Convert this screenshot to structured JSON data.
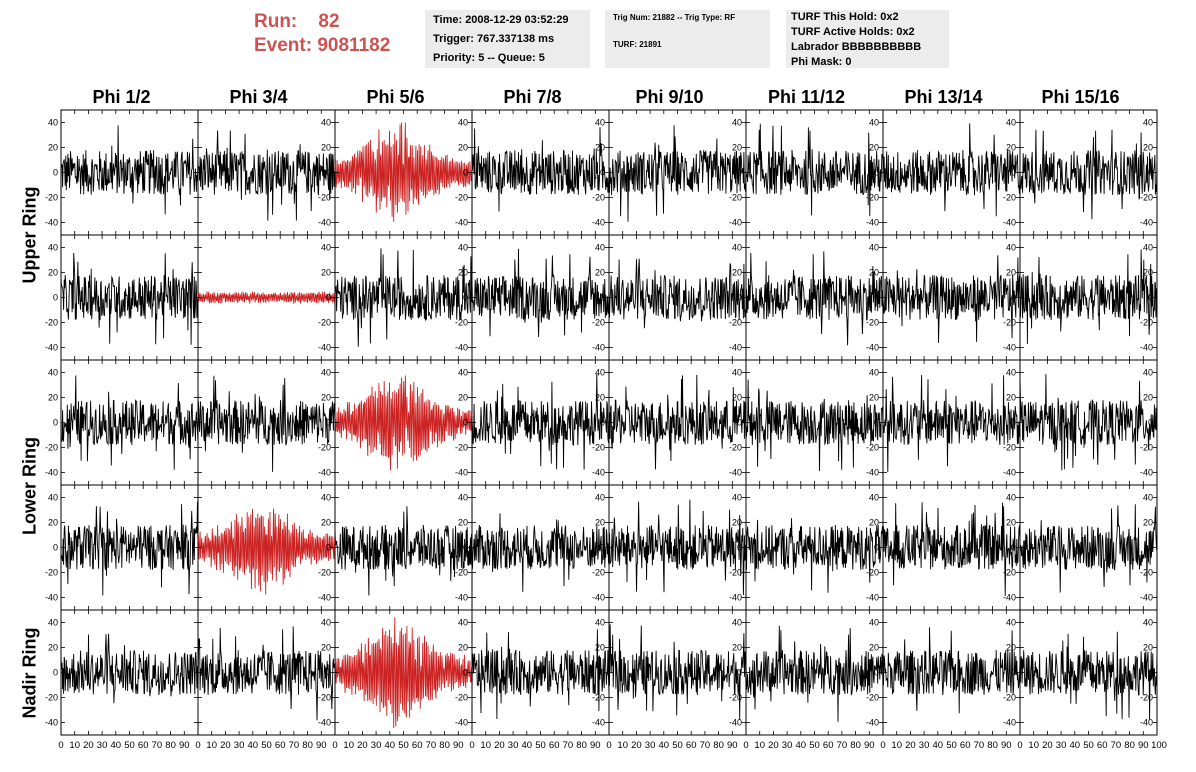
{
  "run_label": "Run:",
  "run_value": "82",
  "event_label": "Event:",
  "event_value": "9081182",
  "info_box_1": [
    "Time: 2008-12-29 03:52:29",
    "Trigger: 767.337138 ms",
    "Priority: 5 -- Queue: 5"
  ],
  "info_box_2": [
    "Trig Num: 21882 -- Trig Type: RF",
    "TURF: 21891"
  ],
  "info_box_3": [
    "TURF This Hold: 0x2",
    "TURF Active Holds: 0x2",
    "Labrador BBBBBBBBBB",
    "Phi Mask: 0"
  ],
  "colors": {
    "highlight_text": "#cd5353",
    "trace_normal": "#000000",
    "trace_highlight": "#cc2222",
    "info_box_bg": "#ececec"
  },
  "chart_data": {
    "type": "line",
    "columns": [
      "Phi 1/2",
      "Phi 3/4",
      "Phi 5/6",
      "Phi 7/8",
      "Phi 9/10",
      "Phi 11/12",
      "Phi 13/14",
      "Phi 15/16"
    ],
    "rows": [
      "Upper Ring",
      "Upper Ring",
      "Lower Ring",
      "Lower Ring",
      "Nadir Ring"
    ],
    "row_labels": [
      "Upper Ring",
      "Lower Ring",
      "Nadir Ring"
    ],
    "xlim": [
      0,
      100
    ],
    "ylim": [
      -50,
      50
    ],
    "x_ticks": [
      0,
      10,
      20,
      30,
      40,
      50,
      60,
      70,
      80,
      90
    ],
    "x_tick_labels_last": [
      "100"
    ],
    "y_ticks": [
      -40,
      -20,
      0,
      20,
      40
    ],
    "samples_per_trace": 260,
    "typical_amplitude": 18,
    "highlighted_panels": [
      {
        "row": 0,
        "col": 2,
        "peak_amplitude": 42
      },
      {
        "row": 1,
        "col": 1,
        "peak_amplitude": 5
      },
      {
        "row": 2,
        "col": 2,
        "peak_amplitude": 42
      },
      {
        "row": 3,
        "col": 1,
        "peak_amplitude": 40
      },
      {
        "row": 4,
        "col": 2,
        "peak_amplitude": 45
      }
    ]
  }
}
